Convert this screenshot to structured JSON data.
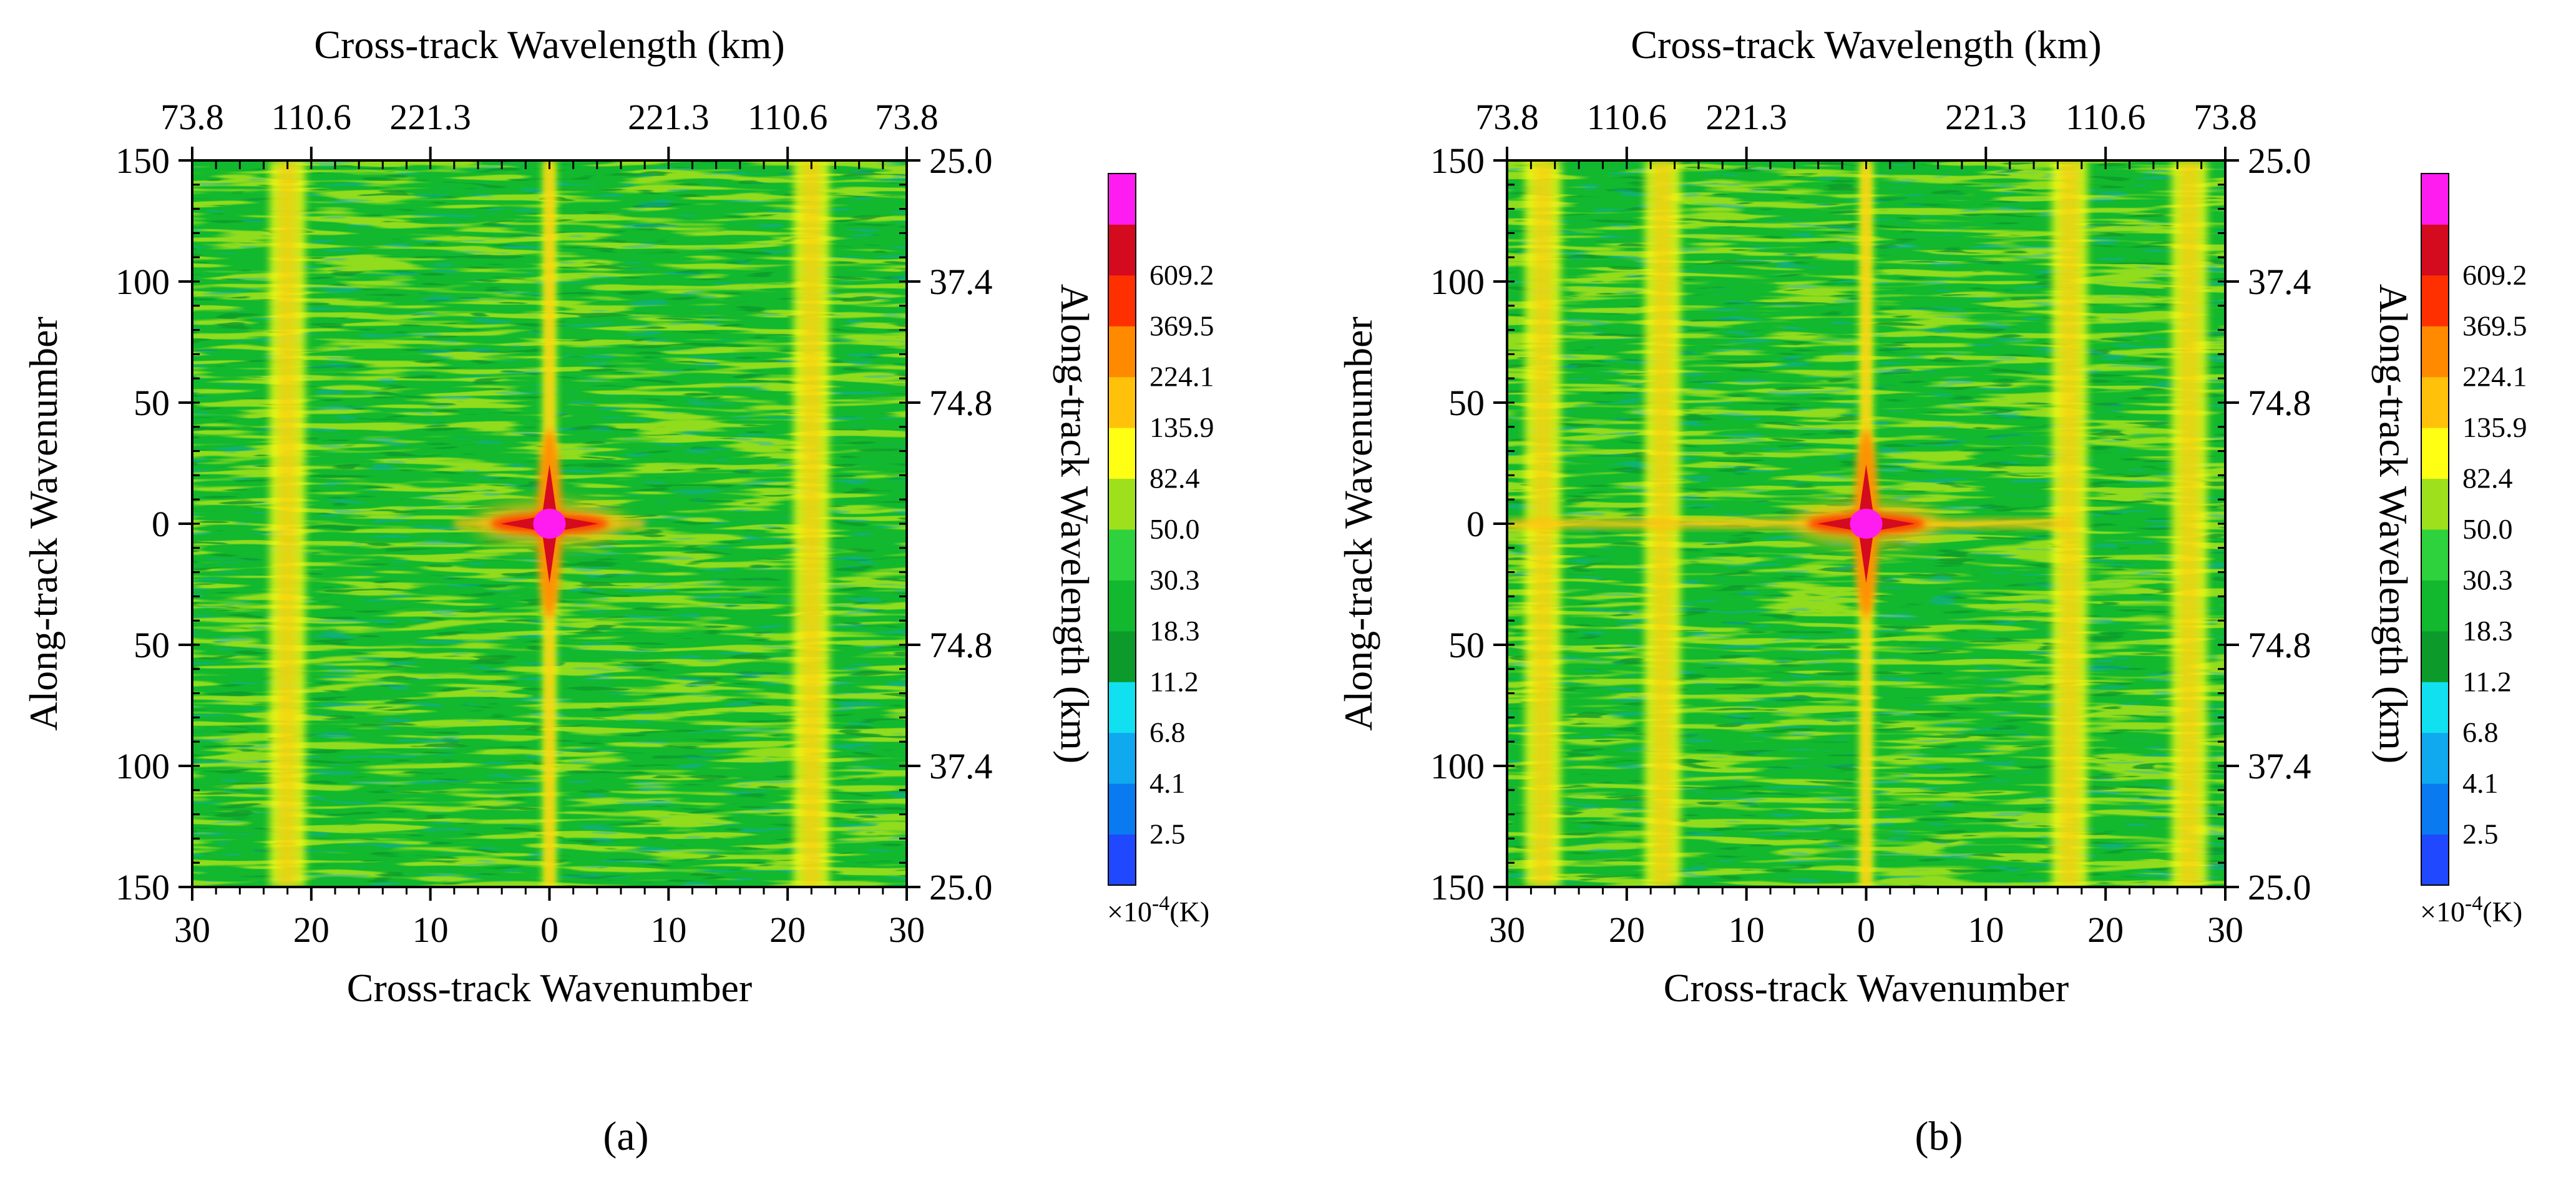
{
  "figure": {
    "panel_labels": [
      "(a)",
      "(b)"
    ],
    "palette": [
      "#1f48ff",
      "#0a7af0",
      "#10a8ee",
      "#10e0f0",
      "#0c9b2a",
      "#12b82e",
      "#2ed23c",
      "#9fe01c",
      "#ffff14",
      "#ffc10a",
      "#ff8a00",
      "#ff3000",
      "#d40a1e",
      "#ff1cf0"
    ]
  },
  "chart_data": [
    {
      "type": "heatmap",
      "panel": "a",
      "title": "",
      "top_xlabel": "Cross-track Wavelength (km)",
      "xlabel": "Cross-track Wavenumber",
      "ylabel": "Along-track Wavenumber",
      "right_ylabel": "Along-track Wavelength (km)",
      "x_ticks": [
        30,
        20,
        10,
        0,
        10,
        20,
        30
      ],
      "x_tick_values": [
        -30,
        -20,
        -10,
        0,
        10,
        20,
        30
      ],
      "xlim": [
        -30,
        30
      ],
      "y_ticks": [
        150,
        100,
        50,
        0,
        50,
        100,
        150
      ],
      "y_tick_values": [
        150,
        100,
        50,
        0,
        -50,
        -100,
        -150
      ],
      "ylim": [
        -150,
        150
      ],
      "top_ticks": [
        "73.8",
        "110.6",
        "221.3",
        "221.3",
        "110.6",
        "73.8"
      ],
      "top_tick_values": [
        -30,
        -20,
        -10,
        10,
        20,
        30
      ],
      "right_ticks": [
        "25.0",
        "37.4",
        "74.8",
        "74.8",
        "37.4",
        "25.0"
      ],
      "right_tick_values": [
        150,
        100,
        50,
        -50,
        -100,
        -150
      ],
      "features": {
        "vertical_bands_at_wavenumber": [
          -22,
          0,
          22
        ],
        "peak_at": [
          0,
          0
        ],
        "horizontal_ridge_extent": [
          -8,
          8
        ],
        "peak_value_label": "609.2"
      },
      "colorbar": {
        "levels": [
          "2.5",
          "4.1",
          "6.8",
          "11.2",
          "18.3",
          "30.3",
          "50.0",
          "82.4",
          "135.9",
          "224.1",
          "369.5",
          "609.2"
        ],
        "unit": "×10",
        "unit_exp": "-4",
        "unit_suffix": "(K)"
      }
    },
    {
      "type": "heatmap",
      "panel": "b",
      "title": "",
      "top_xlabel": "Cross-track Wavelength (km)",
      "xlabel": "Cross-track Wavenumber",
      "ylabel": "Along-track Wavenumber",
      "right_ylabel": "Along-track Wavelength (km)",
      "x_ticks": [
        30,
        20,
        10,
        0,
        10,
        20,
        30
      ],
      "x_tick_values": [
        -30,
        -20,
        -10,
        0,
        10,
        20,
        30
      ],
      "xlim": [
        -30,
        30
      ],
      "y_ticks": [
        150,
        100,
        50,
        0,
        50,
        100,
        150
      ],
      "y_tick_values": [
        150,
        100,
        50,
        0,
        -50,
        -100,
        -150
      ],
      "ylim": [
        -150,
        150
      ],
      "top_ticks": [
        "73.8",
        "110.6",
        "221.3",
        "221.3",
        "110.6",
        "73.8"
      ],
      "top_tick_values": [
        -30,
        -20,
        -10,
        10,
        20,
        30
      ],
      "right_ticks": [
        "25.0",
        "37.4",
        "74.8",
        "74.8",
        "37.4",
        "25.0"
      ],
      "right_tick_values": [
        150,
        100,
        50,
        -50,
        -100,
        -150
      ],
      "features": {
        "vertical_bands_at_wavenumber": [
          -27,
          -17,
          0,
          17,
          27
        ],
        "peak_at": [
          0,
          0
        ],
        "horizontal_ridge_extent": [
          -30,
          17
        ],
        "peak_value_label": "609.2"
      },
      "colorbar": {
        "levels": [
          "2.5",
          "4.1",
          "6.8",
          "11.2",
          "18.3",
          "30.3",
          "50.0",
          "82.4",
          "135.9",
          "224.1",
          "369.5",
          "609.2"
        ],
        "unit": "×10",
        "unit_exp": "-4",
        "unit_suffix": "(K)"
      }
    }
  ]
}
